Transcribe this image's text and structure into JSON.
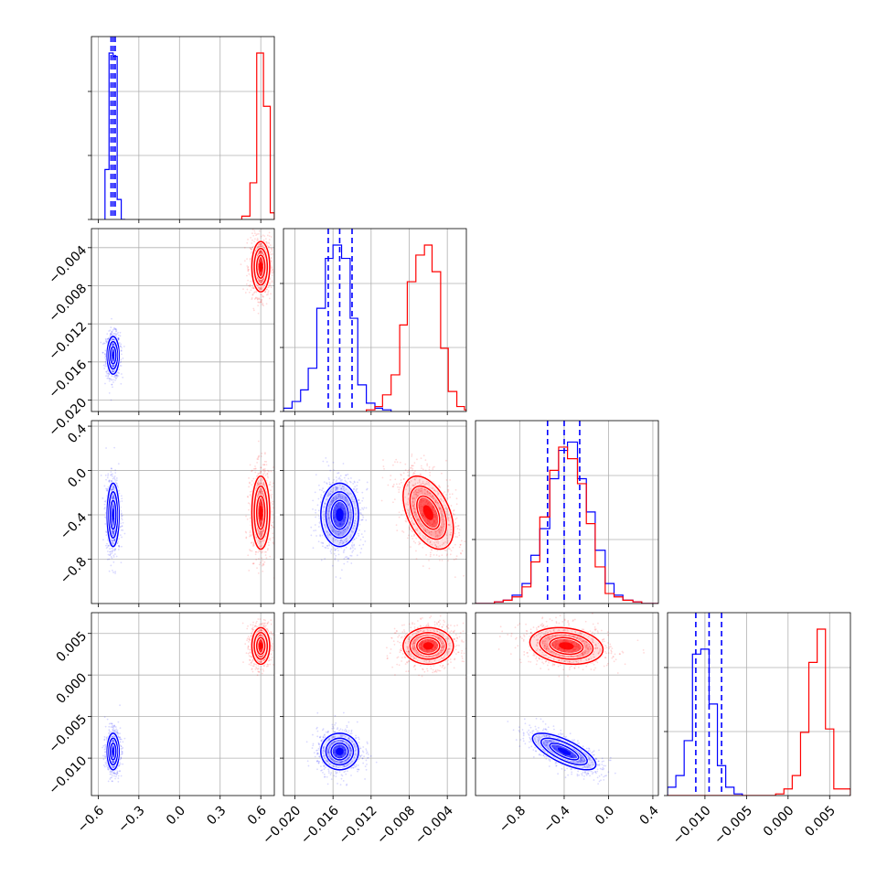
{
  "chart_data": {
    "type": "corner",
    "grid": true,
    "colors": {
      "blue": "#0000ff",
      "red": "#ff0000"
    },
    "parameters": [
      {
        "index": 0,
        "range": [
          -0.65,
          0.7
        ],
        "ticks": [
          -0.6,
          -0.3,
          0.0,
          0.3,
          0.6
        ],
        "tick_labels": [
          "−0.6",
          "−0.3",
          "0.0",
          "0.3",
          "0.6"
        ]
      },
      {
        "index": 1,
        "range": [
          -0.0212,
          -0.002
        ],
        "ticks": [
          -0.02,
          -0.016,
          -0.012,
          -0.008,
          -0.004
        ],
        "tick_labels": [
          "−0.020",
          "−0.016",
          "−0.012",
          "−0.008",
          "−0.004"
        ]
      },
      {
        "index": 2,
        "range": [
          -1.2,
          0.45
        ],
        "ticks": [
          -0.8,
          -0.4,
          0.0,
          0.4
        ],
        "tick_labels": [
          "−0.8",
          "−0.4",
          "0.0",
          "0.4"
        ]
      },
      {
        "index": 3,
        "range": [
          -0.0145,
          0.0075
        ],
        "ticks": [
          -0.01,
          -0.005,
          0.0,
          0.005
        ],
        "tick_labels": [
          "−0.010",
          "−0.005",
          "0.000",
          "0.005"
        ]
      }
    ],
    "series": [
      {
        "color": "#0000ff",
        "means": [
          -0.49,
          -0.0153,
          -0.4,
          -0.0092
        ],
        "sigmas": [
          0.02,
          0.0009,
          0.13,
          0.001
        ],
        "correlations": [
          [
            0,
            1,
            0.0
          ],
          [
            0,
            2,
            0.0
          ],
          [
            0,
            3,
            0.0
          ],
          [
            1,
            2,
            0.0
          ],
          [
            1,
            3,
            0.0
          ],
          [
            2,
            3,
            -0.72
          ]
        ],
        "quantile_lines": [
          [
            -0.505,
            -0.49,
            -0.475
          ],
          [
            -0.0165,
            -0.0153,
            -0.014
          ],
          [
            -0.55,
            -0.4,
            -0.26
          ],
          [
            -0.0111,
            -0.0095,
            -0.008
          ]
        ],
        "histograms": [
          {
            "bins": [
              -0.55,
              -0.52,
              -0.49,
              -0.46,
              -0.43,
              -0.4
            ],
            "counts": [
              0.3,
              1.0,
              0.98,
              0.12,
              0.0
            ]
          },
          {
            "bins": [
              -0.0212,
              -0.0203,
              -0.0194,
              -0.0186,
              -0.0177,
              -0.0168,
              -0.016,
              -0.0151,
              -0.0142,
              -0.0134,
              -0.0125,
              -0.0116,
              -0.0108,
              -0.0099
            ],
            "counts": [
              0.02,
              0.06,
              0.13,
              0.26,
              0.62,
              0.92,
              1.0,
              0.92,
              0.56,
              0.16,
              0.05,
              0.02,
              0.01
            ]
          },
          {
            "bins": [
              -1.2,
              -1.12,
              -1.03,
              -0.95,
              -0.87,
              -0.78,
              -0.7,
              -0.62,
              -0.53,
              -0.45,
              -0.37,
              -0.28,
              -0.2,
              -0.12,
              -0.03,
              0.05,
              0.13,
              0.22,
              0.3,
              0.38,
              0.45
            ],
            "counts": [
              0.0,
              0.0,
              0.01,
              0.02,
              0.05,
              0.12,
              0.29,
              0.45,
              0.75,
              0.92,
              0.97,
              0.75,
              0.55,
              0.32,
              0.12,
              0.05,
              0.02,
              0.01,
              0.0,
              0.0
            ]
          },
          {
            "bins": [
              -0.0145,
              -0.0135,
              -0.0125,
              -0.0115,
              -0.0105,
              -0.0095,
              -0.0085,
              -0.0075,
              -0.0065,
              -0.0055
            ],
            "counts": [
              0.05,
              0.12,
              0.33,
              0.85,
              0.88,
              0.55,
              0.18,
              0.05,
              0.01
            ]
          }
        ]
      },
      {
        "color": "#ff0000",
        "means": [
          0.6,
          -0.006,
          -0.38,
          0.0035
        ],
        "sigmas": [
          0.03,
          0.0012,
          0.15,
          0.001
        ],
        "correlations": [
          [
            0,
            1,
            0.0
          ],
          [
            0,
            2,
            0.0
          ],
          [
            0,
            3,
            0.0
          ],
          [
            1,
            2,
            -0.45
          ],
          [
            1,
            3,
            0.0
          ],
          [
            2,
            3,
            -0.2
          ]
        ],
        "quantile_lines": null,
        "histograms": [
          {
            "bins": [
              0.46,
              0.52,
              0.57,
              0.62,
              0.67,
              0.7
            ],
            "counts": [
              0.02,
              0.22,
              1.0,
              0.68,
              0.04
            ]
          },
          {
            "bins": [
              -0.0125,
              -0.0116,
              -0.0108,
              -0.0099,
              -0.009,
              -0.0082,
              -0.0073,
              -0.0064,
              -0.0056,
              -0.0047,
              -0.0039,
              -0.003,
              -0.0022,
              -0.002
            ],
            "counts": [
              0.01,
              0.03,
              0.1,
              0.22,
              0.52,
              0.78,
              0.94,
              1.0,
              0.84,
              0.38,
              0.12,
              0.03,
              0.01
            ]
          },
          {
            "bins": [
              -1.2,
              -1.12,
              -1.03,
              -0.95,
              -0.87,
              -0.78,
              -0.7,
              -0.62,
              -0.53,
              -0.45,
              -0.37,
              -0.28,
              -0.2,
              -0.12,
              -0.03,
              0.05,
              0.13,
              0.22,
              0.3,
              0.38,
              0.45
            ],
            "counts": [
              0.0,
              0.0,
              0.01,
              0.02,
              0.04,
              0.1,
              0.25,
              0.52,
              0.8,
              0.94,
              0.87,
              0.72,
              0.48,
              0.22,
              0.06,
              0.04,
              0.02,
              0.01,
              0.0,
              0.0
            ]
          },
          {
            "bins": [
              -0.0145,
              -0.0015,
              -0.0005,
              0.0005,
              0.0015,
              0.0025,
              0.0035,
              0.0045,
              0.0055,
              0.0075
            ],
            "counts": [
              0.0,
              0.01,
              0.04,
              0.12,
              0.38,
              0.8,
              1.0,
              0.4,
              0.04
            ]
          }
        ]
      }
    ]
  }
}
